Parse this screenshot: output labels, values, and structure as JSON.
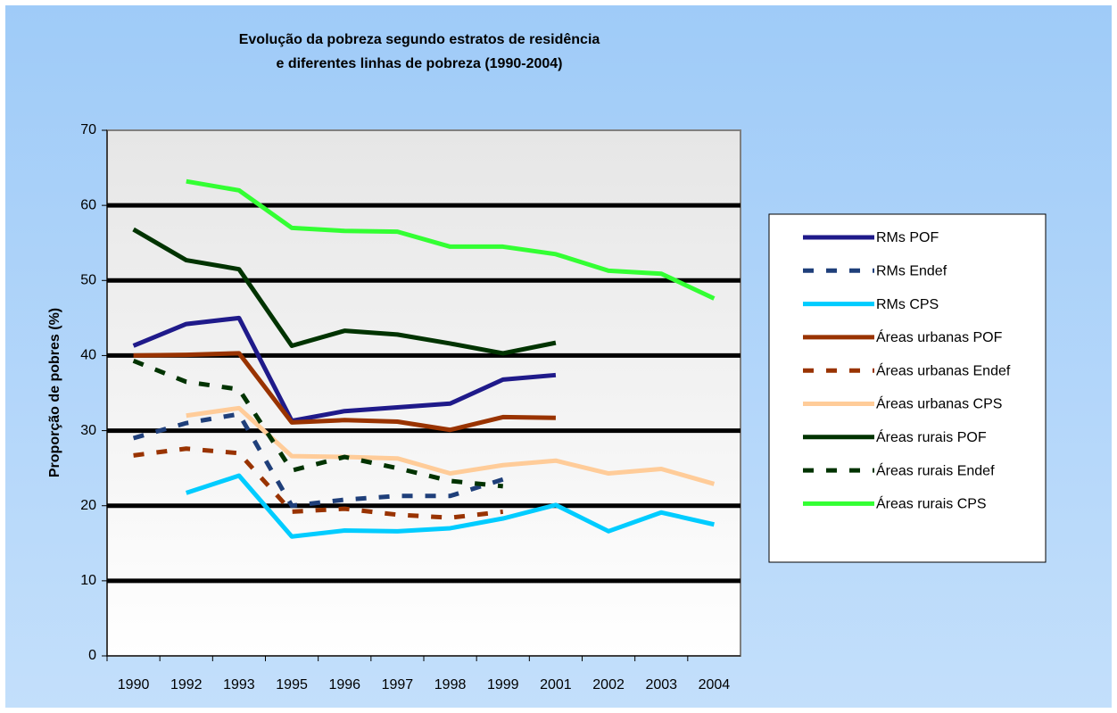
{
  "chart_data": {
    "type": "line",
    "title": [
      "Evolução da pobreza segundo estratos de residência",
      "e diferentes linhas de pobreza (1990-2004)"
    ],
    "ylabel": "Proporção de pobres (%)",
    "categories": [
      "1990",
      "1992",
      "1993",
      "1995",
      "1996",
      "1997",
      "1998",
      "1999",
      "2001",
      "2002",
      "2003",
      "2004"
    ],
    "ylim": [
      0,
      70
    ],
    "yticks": [
      0,
      10,
      20,
      30,
      40,
      50,
      60,
      70
    ],
    "grid": true,
    "series": [
      {
        "name": "RMs POF",
        "color": "#1f1a8a",
        "style": "solid",
        "values": [
          41.3,
          44.2,
          45,
          31.3,
          32.6,
          33.1,
          33.6,
          36.8,
          37.4,
          null,
          null,
          null
        ]
      },
      {
        "name": "RMs Endef",
        "color": "#1f3f7a",
        "style": "dashed",
        "values": [
          29,
          31,
          32.2,
          20,
          20.8,
          21.3,
          21.3,
          23.5,
          null,
          null,
          null,
          null
        ]
      },
      {
        "name": "RMs CPS",
        "color": "#00ccff",
        "style": "solid",
        "values": [
          null,
          21.7,
          24,
          15.9,
          16.7,
          16.6,
          17,
          18.3,
          20.1,
          16.6,
          19.1,
          17.5
        ]
      },
      {
        "name": "Áreas urbanas POF",
        "color": "#993300",
        "style": "solid",
        "values": [
          40,
          40.1,
          40.3,
          31.1,
          31.4,
          31.2,
          30.1,
          31.8,
          31.7,
          null,
          null,
          null
        ]
      },
      {
        "name": "Áreas urbanas Endef",
        "color": "#993300",
        "style": "dashed",
        "values": [
          26.7,
          27.6,
          27,
          19.2,
          19.6,
          18.8,
          18.4,
          19.2,
          null,
          null,
          null,
          null
        ]
      },
      {
        "name": "Áreas urbanas CPS",
        "color": "#ffcc99",
        "style": "solid",
        "values": [
          null,
          32,
          33,
          26.6,
          26.5,
          26.3,
          24.3,
          25.4,
          26,
          24.3,
          24.9,
          22.9
        ]
      },
      {
        "name": "Áreas rurais POF",
        "color": "#003300",
        "style": "solid",
        "values": [
          56.8,
          52.7,
          51.5,
          41.3,
          43.3,
          42.8,
          41.6,
          40.3,
          41.7,
          null,
          null,
          null
        ]
      },
      {
        "name": "Áreas rurais Endef",
        "color": "#003300",
        "style": "dashed",
        "values": [
          39.3,
          36.5,
          35.5,
          24.7,
          26.5,
          25,
          23.3,
          22.6,
          null,
          null,
          null,
          null
        ]
      },
      {
        "name": "Áreas rurais CPS",
        "color": "#33ff33",
        "style": "solid",
        "values": [
          null,
          63.2,
          62,
          57,
          56.6,
          56.5,
          54.5,
          54.5,
          53.5,
          51.3,
          50.9,
          47.6
        ]
      }
    ]
  }
}
